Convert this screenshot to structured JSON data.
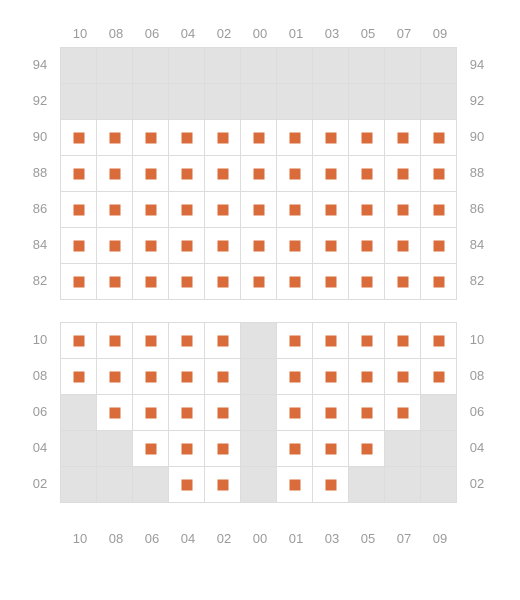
{
  "chart": {
    "type": "seat-map",
    "seat_color": "#d96c3a",
    "empty_color": "#e2e2e2",
    "grid_border_color": "#dcdcdc",
    "label_color": "#9a9a9a",
    "label_fontsize": 13,
    "cell_size": 36,
    "marker_size": 11,
    "columns": [
      "10",
      "08",
      "06",
      "04",
      "02",
      "00",
      "01",
      "03",
      "05",
      "07",
      "09"
    ],
    "blocks": [
      {
        "id": "top",
        "rows": [
          "94",
          "92",
          "90",
          "88",
          "86",
          "84",
          "82"
        ],
        "cells": [
          [
            "e",
            "e",
            "e",
            "e",
            "e",
            "e",
            "e",
            "e",
            "e",
            "e",
            "e"
          ],
          [
            "e",
            "e",
            "e",
            "e",
            "e",
            "e",
            "e",
            "e",
            "e",
            "e",
            "e"
          ],
          [
            "s",
            "s",
            "s",
            "s",
            "s",
            "s",
            "s",
            "s",
            "s",
            "s",
            "s"
          ],
          [
            "s",
            "s",
            "s",
            "s",
            "s",
            "s",
            "s",
            "s",
            "s",
            "s",
            "s"
          ],
          [
            "s",
            "s",
            "s",
            "s",
            "s",
            "s",
            "s",
            "s",
            "s",
            "s",
            "s"
          ],
          [
            "s",
            "s",
            "s",
            "s",
            "s",
            "s",
            "s",
            "s",
            "s",
            "s",
            "s"
          ],
          [
            "s",
            "s",
            "s",
            "s",
            "s",
            "s",
            "s",
            "s",
            "s",
            "s",
            "s"
          ]
        ]
      },
      {
        "id": "bottom",
        "rows": [
          "10",
          "08",
          "06",
          "04",
          "02"
        ],
        "cells": [
          [
            "s",
            "s",
            "s",
            "s",
            "s",
            "e",
            "s",
            "s",
            "s",
            "s",
            "s"
          ],
          [
            "s",
            "s",
            "s",
            "s",
            "s",
            "e",
            "s",
            "s",
            "s",
            "s",
            "s"
          ],
          [
            "e",
            "s",
            "s",
            "s",
            "s",
            "e",
            "s",
            "s",
            "s",
            "s",
            "e"
          ],
          [
            "e",
            "e",
            "s",
            "s",
            "s",
            "e",
            "s",
            "s",
            "s",
            "e",
            "e"
          ],
          [
            "e",
            "e",
            "e",
            "s",
            "s",
            "e",
            "s",
            "s",
            "e",
            "e",
            "e"
          ]
        ]
      }
    ]
  }
}
